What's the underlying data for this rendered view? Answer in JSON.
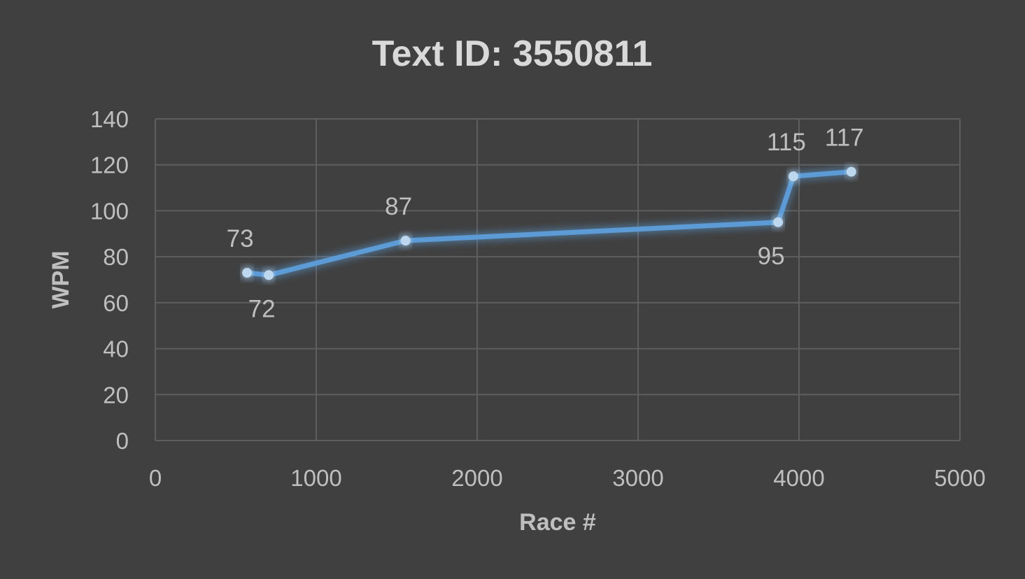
{
  "chart_data": {
    "type": "line",
    "title": "Text ID: 3550811",
    "xlabel": "Race #",
    "ylabel": "WPM",
    "xlim": [
      0,
      5000
    ],
    "ylim": [
      0,
      140
    ],
    "xticks": [
      0,
      1000,
      2000,
      3000,
      4000,
      5000
    ],
    "yticks": [
      0,
      20,
      40,
      60,
      80,
      100,
      120,
      140
    ],
    "grid": true,
    "legend": "none",
    "series": [
      {
        "color": "#5B9BD5",
        "points": [
          {
            "x": 570,
            "y": 73,
            "label": "73",
            "label_pos": "above"
          },
          {
            "x": 705,
            "y": 72,
            "label": "72",
            "label_pos": "below"
          },
          {
            "x": 1555,
            "y": 87,
            "label": "87",
            "label_pos": "above"
          },
          {
            "x": 3870,
            "y": 95,
            "label": "95",
            "label_pos": "below"
          },
          {
            "x": 3965,
            "y": 115,
            "label": "115",
            "label_pos": "above"
          },
          {
            "x": 4325,
            "y": 117,
            "label": "117",
            "label_pos": "above"
          }
        ]
      }
    ]
  },
  "colors": {
    "background": "#404040",
    "grid": "#5E5E5E",
    "text": "#BFBFBF",
    "title": "#D9D9D9",
    "line": "#5B9BD5",
    "marker": "#BDD7EE"
  }
}
